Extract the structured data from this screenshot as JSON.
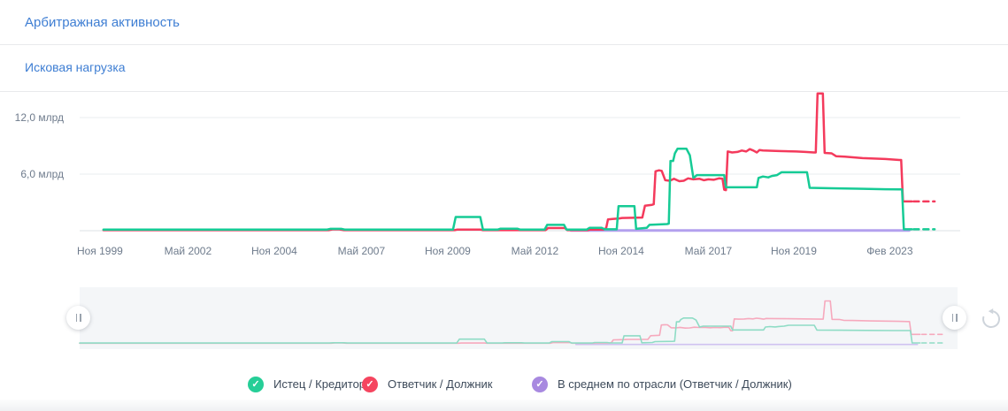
{
  "sections": {
    "title1": "Арбитражная активность",
    "title2": "Исковая нагрузка"
  },
  "chart_data": {
    "type": "line",
    "title": "Исковая нагрузка",
    "y_unit": "млрд",
    "x_axis_note": "t = нормированная позиция по оси времени, Ноя 1999 (t=0.023) … Фев 2023 (t=0.920), пунктир справа — прогноз",
    "ylim": [
      0,
      15
    ],
    "grid": "horizontal",
    "y_ticks": [
      {
        "label": "12,0 млрд",
        "value": 12
      },
      {
        "label": "6,0 млрд",
        "value": 6
      }
    ],
    "x_ticks": [
      {
        "label": "Ноя 1999",
        "t": 0.023
      },
      {
        "label": "Май 2002",
        "t": 0.123
      },
      {
        "label": "Ноя 2004",
        "t": 0.221
      },
      {
        "label": "Май 2007",
        "t": 0.32
      },
      {
        "label": "Ноя 2009",
        "t": 0.418
      },
      {
        "label": "Май 2012",
        "t": 0.517
      },
      {
        "label": "Ноя 2014",
        "t": 0.615
      },
      {
        "label": "Май 2017",
        "t": 0.714
      },
      {
        "label": "Ноя 2019",
        "t": 0.811
      },
      {
        "label": "Фев 2023",
        "t": 0.92
      }
    ],
    "series": [
      {
        "key": "plaintiff",
        "name": "Истец / Кредитор",
        "color": "#16cb95",
        "mini_color": "#8edcc5",
        "points": [
          [
            0.027,
            0.12
          ],
          [
            0.281,
            0.12
          ],
          [
            0.285,
            0.2
          ],
          [
            0.297,
            0.2
          ],
          [
            0.301,
            0.12
          ],
          [
            0.424,
            0.12
          ],
          [
            0.427,
            1.45
          ],
          [
            0.455,
            1.45
          ],
          [
            0.458,
            0.12
          ],
          [
            0.475,
            0.12
          ],
          [
            0.478,
            0.22
          ],
          [
            0.497,
            0.22
          ],
          [
            0.5,
            0.12
          ],
          [
            0.528,
            0.12
          ],
          [
            0.531,
            0.62
          ],
          [
            0.55,
            0.62
          ],
          [
            0.553,
            0.12
          ],
          [
            0.576,
            0.12
          ],
          [
            0.579,
            0.3
          ],
          [
            0.593,
            0.3
          ],
          [
            0.596,
            0.15
          ],
          [
            0.61,
            0.15
          ],
          [
            0.612,
            2.6
          ],
          [
            0.63,
            2.6
          ],
          [
            0.632,
            0.2
          ],
          [
            0.644,
            0.3
          ],
          [
            0.647,
            0.62
          ],
          [
            0.667,
            0.7
          ],
          [
            0.669,
            0.75
          ],
          [
            0.671,
            7.4
          ],
          [
            0.674,
            7.4
          ],
          [
            0.676,
            8.2
          ],
          [
            0.679,
            8.7
          ],
          [
            0.689,
            8.7
          ],
          [
            0.693,
            8.0
          ],
          [
            0.697,
            5.6
          ],
          [
            0.701,
            5.9
          ],
          [
            0.732,
            5.9
          ],
          [
            0.734,
            4.6
          ],
          [
            0.769,
            4.6
          ],
          [
            0.771,
            5.6
          ],
          [
            0.776,
            5.75
          ],
          [
            0.782,
            5.65
          ],
          [
            0.786,
            5.8
          ],
          [
            0.792,
            5.9
          ],
          [
            0.797,
            6.2
          ],
          [
            0.826,
            6.2
          ],
          [
            0.829,
            4.55
          ],
          [
            0.854,
            4.5
          ],
          [
            0.884,
            4.45
          ],
          [
            0.915,
            4.4
          ],
          [
            0.931,
            4.38
          ],
          [
            0.934,
            4.38
          ],
          [
            0.936,
            0.15
          ],
          [
            0.945,
            0.15
          ]
        ],
        "forecast_dash": [
          [
            0.947,
            0.15
          ],
          [
            0.971,
            0.15
          ]
        ]
      },
      {
        "key": "defendant",
        "name": "Ответчик / Должник",
        "color": "#f43a5c",
        "mini_color": "#f6a9bd",
        "points": [
          [
            0.027,
            0.06
          ],
          [
            0.283,
            0.06
          ],
          [
            0.287,
            0.14
          ],
          [
            0.295,
            0.14
          ],
          [
            0.3,
            0.06
          ],
          [
            0.426,
            0.06
          ],
          [
            0.429,
            0.12
          ],
          [
            0.455,
            0.12
          ],
          [
            0.458,
            0.06
          ],
          [
            0.529,
            0.06
          ],
          [
            0.532,
            0.28
          ],
          [
            0.551,
            0.28
          ],
          [
            0.554,
            0.06
          ],
          [
            0.577,
            0.06
          ],
          [
            0.58,
            0.12
          ],
          [
            0.595,
            0.12
          ],
          [
            0.598,
            0.3
          ],
          [
            0.6,
            1.2
          ],
          [
            0.605,
            1.25
          ],
          [
            0.613,
            1.3
          ],
          [
            0.616,
            1.35
          ],
          [
            0.639,
            1.4
          ],
          [
            0.642,
            2.65
          ],
          [
            0.65,
            2.75
          ],
          [
            0.652,
            2.8
          ],
          [
            0.654,
            6.3
          ],
          [
            0.658,
            6.4
          ],
          [
            0.661,
            6.35
          ],
          [
            0.665,
            5.35
          ],
          [
            0.67,
            5.3
          ],
          [
            0.675,
            5.5
          ],
          [
            0.681,
            5.25
          ],
          [
            0.686,
            5.3
          ],
          [
            0.691,
            5.55
          ],
          [
            0.697,
            5.45
          ],
          [
            0.704,
            5.5
          ],
          [
            0.709,
            5.35
          ],
          [
            0.714,
            5.45
          ],
          [
            0.72,
            5.4
          ],
          [
            0.726,
            5.55
          ],
          [
            0.73,
            5.5
          ],
          [
            0.732,
            4.35
          ],
          [
            0.734,
            4.3
          ],
          [
            0.736,
            8.4
          ],
          [
            0.741,
            8.3
          ],
          [
            0.747,
            8.35
          ],
          [
            0.752,
            8.5
          ],
          [
            0.757,
            8.4
          ],
          [
            0.761,
            8.65
          ],
          [
            0.765,
            8.5
          ],
          [
            0.769,
            8.3
          ],
          [
            0.772,
            8.55
          ],
          [
            0.776,
            8.5
          ],
          [
            0.794,
            8.45
          ],
          [
            0.814,
            8.4
          ],
          [
            0.824,
            8.35
          ],
          [
            0.834,
            8.3
          ],
          [
            0.836,
            8.3
          ],
          [
            0.838,
            14.55
          ],
          [
            0.844,
            14.55
          ],
          [
            0.846,
            8.25
          ],
          [
            0.854,
            8.2
          ],
          [
            0.859,
            7.9
          ],
          [
            0.869,
            7.85
          ],
          [
            0.889,
            7.7
          ],
          [
            0.915,
            7.6
          ],
          [
            0.931,
            7.5
          ],
          [
            0.933,
            7.5
          ],
          [
            0.935,
            3.1
          ],
          [
            0.945,
            3.1
          ]
        ],
        "forecast_dash": [
          [
            0.947,
            3.1
          ],
          [
            0.971,
            3.1
          ]
        ]
      },
      {
        "key": "industry",
        "name": "В среднем по отрасли (Ответчик / Должник)",
        "color": "#b3a0ee",
        "mini_color": "#cfc2f1",
        "points": [
          [
            0.558,
            0.03
          ],
          [
            0.942,
            0.03
          ]
        ]
      }
    ]
  },
  "legend": {
    "check_glyph": "✓",
    "items": [
      {
        "label": "Истец / Кредитор",
        "color": "#26ce97"
      },
      {
        "label": "Ответчик / Должник",
        "color": "#f5455f"
      },
      {
        "label": "В среднем по отрасли (Ответчик / Должник)",
        "color": "#a889e0"
      }
    ]
  },
  "controls": {
    "left_handle": "brush-left",
    "right_handle": "brush-right",
    "reset": "reset-zoom"
  }
}
